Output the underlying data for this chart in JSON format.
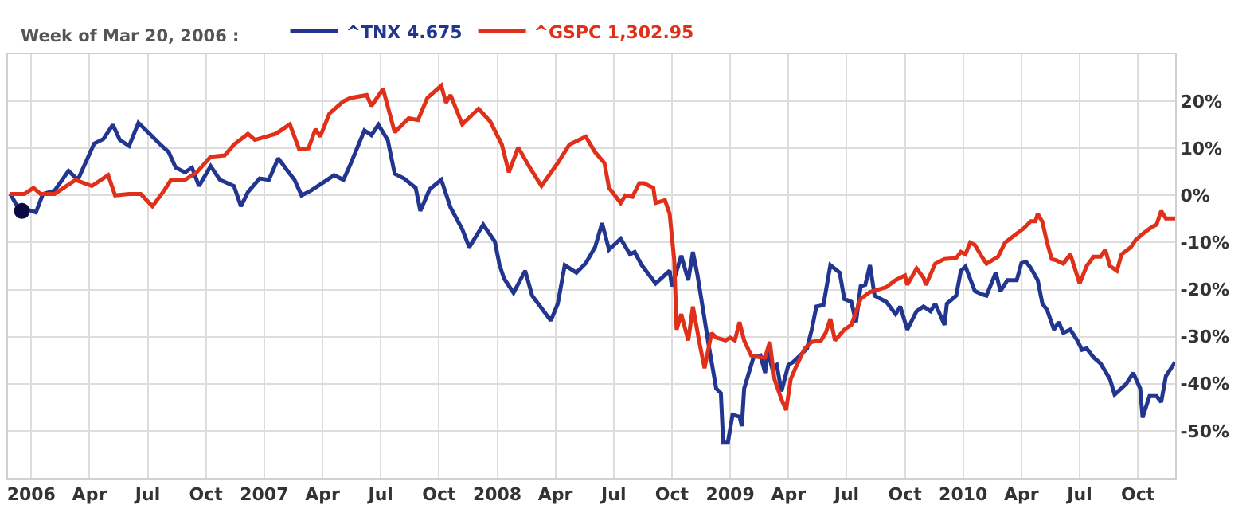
{
  "chart_data": {
    "type": "line",
    "annotations": [
      "Week of Mar 20, 2006 :"
    ],
    "xlim": [
      2005.9,
      2010.91
    ],
    "xticks": [
      {
        "value": 2006,
        "label": "2006"
      },
      {
        "value": 2006.25,
        "label": "Apr"
      },
      {
        "value": 2006.5,
        "label": "Jul"
      },
      {
        "value": 2006.75,
        "label": "Oct"
      },
      {
        "value": 2007,
        "label": "2007"
      },
      {
        "value": 2007.25,
        "label": "Apr"
      },
      {
        "value": 2007.5,
        "label": "Jul"
      },
      {
        "value": 2007.75,
        "label": "Oct"
      },
      {
        "value": 2008,
        "label": "2008"
      },
      {
        "value": 2008.25,
        "label": "Apr"
      },
      {
        "value": 2008.5,
        "label": "Jul"
      },
      {
        "value": 2008.75,
        "label": "Oct"
      },
      {
        "value": 2009,
        "label": "2009"
      },
      {
        "value": 2009.25,
        "label": "Apr"
      },
      {
        "value": 2009.5,
        "label": "Jul"
      },
      {
        "value": 2009.75,
        "label": "Oct"
      },
      {
        "value": 2010,
        "label": "2010"
      },
      {
        "value": 2010.25,
        "label": "Apr"
      },
      {
        "value": 2010.5,
        "label": "Jul"
      },
      {
        "value": 2010.75,
        "label": "Oct"
      }
    ],
    "ylim": [
      -60,
      30
    ],
    "yticks": [
      {
        "value": 20,
        "label": "20%"
      },
      {
        "value": 10,
        "label": "10%"
      },
      {
        "value": 0,
        "label": "0%"
      },
      {
        "value": -10,
        "label": "-10%"
      },
      {
        "value": -20,
        "label": "-20%"
      },
      {
        "value": -30,
        "label": "-30%"
      },
      {
        "value": -40,
        "label": "-40%"
      },
      {
        "value": -50,
        "label": "-50%"
      }
    ],
    "grid": true,
    "legend": "top left",
    "marker": "none",
    "series": [
      {
        "name": "^TNX 4.675",
        "color": "#23368f",
        "x": [
          2005.91,
          2005.94,
          2006.02,
          2006.05,
          2006.1,
          2006.16,
          2006.2,
          2006.27,
          2006.31,
          2006.35,
          2006.38,
          2006.42,
          2006.46,
          2006.51,
          2006.55,
          2006.59,
          2006.62,
          2006.66,
          2006.69,
          2006.72,
          2006.77,
          2006.81,
          2006.87,
          2006.9,
          2006.93,
          2006.98,
          2007.02,
          2007.06,
          2007.1,
          2007.13,
          2007.16,
          2007.2,
          2007.27,
          2007.3,
          2007.34,
          2007.37,
          2007.43,
          2007.46,
          2007.49,
          2007.53,
          2007.56,
          2007.6,
          2007.65,
          2007.67,
          2007.71,
          2007.76,
          2007.8,
          2007.85,
          2007.88,
          2007.94,
          2007.99,
          2008.01,
          2008.03,
          2008.07,
          2008.12,
          2008.15,
          2008.23,
          2008.26,
          2008.29,
          2008.34,
          2008.38,
          2008.42,
          2008.45,
          2008.48,
          2008.53,
          2008.57,
          2008.59,
          2008.62,
          2008.68,
          2008.74,
          2008.75,
          2008.79,
          2008.82,
          2008.84,
          2008.86,
          2008.91,
          2008.94,
          2008.96,
          2008.97,
          2008.99,
          2009.01,
          2009.04,
          2009.05,
          2009.06,
          2009.1,
          2009.13,
          2009.15,
          2009.16,
          2009.18,
          2009.2,
          2009.22,
          2009.25,
          2009.27,
          2009.3,
          2009.33,
          2009.35,
          2009.37,
          2009.4,
          2009.43,
          2009.47,
          2009.49,
          2009.52,
          2009.54,
          2009.56,
          2009.58,
          2009.6,
          2009.62,
          2009.67,
          2009.71,
          2009.73,
          2009.76,
          2009.8,
          2009.83,
          2009.86,
          2009.88,
          2009.92,
          2009.93,
          2009.97,
          2009.99,
          2010.01,
          2010.05,
          2010.08,
          2010.1,
          2010.14,
          2010.16,
          2010.19,
          2010.23,
          2010.25,
          2010.27,
          2010.29,
          2010.32,
          2010.34,
          2010.36,
          2010.39,
          2010.41,
          2010.43,
          2010.46,
          2010.49,
          2010.51,
          2010.53,
          2010.56,
          2010.59,
          2010.63,
          2010.65,
          2010.7,
          2010.73,
          2010.76,
          2010.77,
          2010.8,
          2010.83,
          2010.85,
          2010.87,
          2010.91
        ],
        "values": [
          0.3,
          -2.3,
          -3.6,
          0.3,
          1,
          5.2,
          3.3,
          11,
          12,
          15,
          11.8,
          10.5,
          15.4,
          13,
          11,
          9.2,
          5.9,
          4.9,
          5.9,
          2,
          6.2,
          3.3,
          2,
          -2.3,
          0.7,
          3.6,
          3.3,
          7.9,
          5.2,
          3.3,
          0,
          1,
          3.3,
          4.3,
          3.3,
          6.6,
          13.8,
          12.8,
          15,
          11.8,
          4.6,
          3.6,
          1.6,
          -3.3,
          1.3,
          3.3,
          -2.6,
          -7.2,
          -11,
          -6.2,
          -9.8,
          -14.8,
          -17.7,
          -20.7,
          -16,
          -21.3,
          -26.6,
          -23,
          -14.8,
          -16.4,
          -14.4,
          -11,
          -5.9,
          -11.5,
          -9.2,
          -12.5,
          -12,
          -14.8,
          -18.7,
          -16,
          -19.3,
          -12.8,
          -18,
          -12,
          -17,
          -32.5,
          -41,
          -42,
          -52.5,
          -52.5,
          -46.6,
          -47,
          -49,
          -41,
          -34.4,
          -34,
          -37.7,
          -32.8,
          -36.7,
          -36,
          -41.6,
          -36,
          -35.4,
          -34,
          -32.5,
          -28.5,
          -23.6,
          -23.3,
          -14.8,
          -16.4,
          -22,
          -22.6,
          -26.9,
          -19.3,
          -19,
          -14.8,
          -21.3,
          -22.6,
          -25.2,
          -23.6,
          -28.5,
          -24.6,
          -23.6,
          -24.6,
          -23,
          -27.5,
          -23,
          -21.3,
          -16,
          -15.1,
          -20.3,
          -21,
          -21.3,
          -16.4,
          -20.3,
          -18,
          -18,
          -14.4,
          -14.1,
          -15.4,
          -18,
          -23,
          -24.3,
          -28.5,
          -26.9,
          -29.2,
          -28.5,
          -30.8,
          -32.8,
          -32.5,
          -34.4,
          -35.7,
          -39,
          -42.3,
          -40,
          -37.7,
          -41,
          -47.2,
          -42.6,
          -42.6,
          -43.9,
          -38.4,
          -35.4
        ]
      },
      {
        "name": "^GSPC 1,302.95",
        "color": "#e0301a",
        "x": [
          2005.91,
          2005.97,
          2006.01,
          2006.04,
          2006.1,
          2006.19,
          2006.26,
          2006.33,
          2006.36,
          2006.42,
          2006.47,
          2006.52,
          2006.57,
          2006.6,
          2006.66,
          2006.71,
          2006.77,
          2006.83,
          2006.87,
          2006.93,
          2006.96,
          2007.01,
          2007.05,
          2007.11,
          2007.15,
          2007.19,
          2007.22,
          2007.24,
          2007.28,
          2007.34,
          2007.37,
          2007.44,
          2007.46,
          2007.51,
          2007.56,
          2007.62,
          2007.66,
          2007.7,
          2007.76,
          2007.78,
          2007.8,
          2007.85,
          2007.92,
          2007.97,
          2008.02,
          2008.05,
          2008.09,
          2008.14,
          2008.19,
          2008.26,
          2008.31,
          2008.38,
          2008.42,
          2008.46,
          2008.48,
          2008.53,
          2008.55,
          2008.58,
          2008.61,
          2008.63,
          2008.67,
          2008.68,
          2008.72,
          2008.74,
          2008.76,
          2008.77,
          2008.79,
          2008.82,
          2008.84,
          2008.87,
          2008.89,
          2008.92,
          2008.94,
          2008.98,
          2009.0,
          2009.02,
          2009.04,
          2009.06,
          2009.09,
          2009.13,
          2009.15,
          2009.17,
          2009.19,
          2009.22,
          2009.24,
          2009.26,
          2009.28,
          2009.32,
          2009.35,
          2009.39,
          2009.41,
          2009.43,
          2009.45,
          2009.49,
          2009.52,
          2009.56,
          2009.6,
          2009.67,
          2009.71,
          2009.75,
          2009.76,
          2009.8,
          2009.83,
          2009.84,
          2009.88,
          2009.92,
          2009.97,
          2009.99,
          2010.01,
          2010.03,
          2010.05,
          2010.08,
          2010.1,
          2010.15,
          2010.18,
          2010.22,
          2010.26,
          2010.29,
          2010.31,
          2010.32,
          2010.34,
          2010.36,
          2010.38,
          2010.4,
          2010.43,
          2010.46,
          2010.5,
          2010.53,
          2010.56,
          2010.59,
          2010.61,
          2010.63,
          2010.66,
          2010.68,
          2010.72,
          2010.74,
          2010.77,
          2010.81,
          2010.83,
          2010.85,
          2010.87,
          2010.91
        ],
        "values": [
          0.3,
          0.3,
          1.6,
          0.3,
          0.3,
          3.3,
          2,
          4.3,
          0,
          0.3,
          0.3,
          -2.3,
          1,
          3.3,
          3.3,
          4.9,
          8.2,
          8.5,
          10.8,
          13.1,
          11.8,
          12.5,
          13.1,
          15.1,
          9.8,
          10,
          14.1,
          12.5,
          17.4,
          20,
          20.7,
          21.3,
          19,
          22.6,
          13.4,
          16.4,
          16,
          20.7,
          23.3,
          19.7,
          21.3,
          15.1,
          18.4,
          15.7,
          10.8,
          4.9,
          10.2,
          5.9,
          2,
          6.9,
          10.8,
          12.5,
          9.2,
          6.9,
          1.6,
          -1.6,
          0,
          -0.3,
          2.6,
          2.6,
          1.6,
          -1.6,
          -1,
          -3.9,
          -13.8,
          -28.5,
          -25.2,
          -30.8,
          -23.6,
          -31.8,
          -36.7,
          -29.2,
          -30.2,
          -30.8,
          -30.2,
          -30.8,
          -26.9,
          -30.8,
          -34,
          -34.4,
          -34.4,
          -31.1,
          -39,
          -43.3,
          -45.6,
          -39,
          -36.7,
          -32.5,
          -31.1,
          -30.8,
          -29.2,
          -26.2,
          -30.8,
          -28.5,
          -27.5,
          -22,
          -20.5,
          -19.5,
          -18,
          -17,
          -19,
          -15.5,
          -17.5,
          -19,
          -14.5,
          -13.5,
          -13.3,
          -12,
          -12.5,
          -10,
          -10.5,
          -13,
          -14.5,
          -13,
          -10,
          -8.5,
          -7,
          -5.5,
          -5.5,
          -3.9,
          -5.6,
          -10,
          -13.5,
          -13.8,
          -14.5,
          -12.5,
          -18.7,
          -15,
          -13,
          -13,
          -11.5,
          -15,
          -16,
          -12.5,
          -11,
          -9.5,
          -8.2,
          -6.7,
          -6.2,
          -3.3,
          -4.9,
          -4.9
        ]
      },
      {
        "type": "scatter",
        "marker": "circle",
        "color": "#0a0a40",
        "x": [
          2005.96
        ],
        "values": [
          -3.3
        ]
      }
    ]
  }
}
